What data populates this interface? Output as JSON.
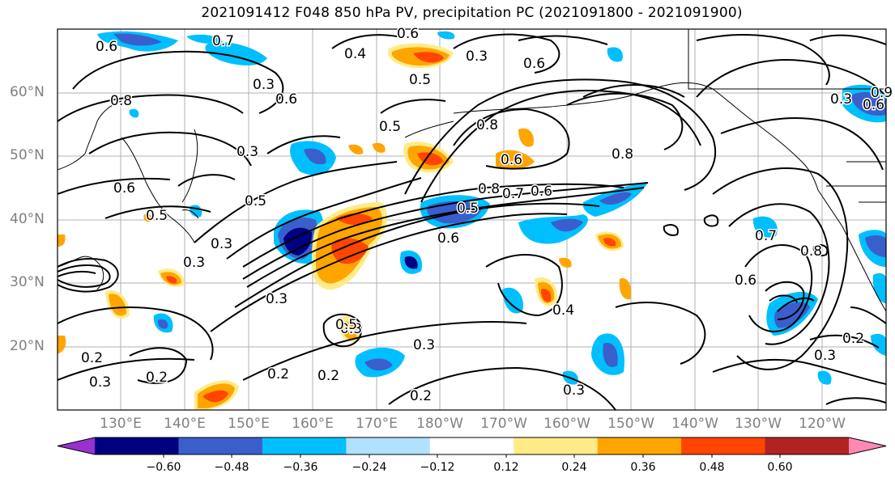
{
  "title": "2021091412 F048 850 hPa PV, precipitation PC (2021091800 - 2021091900)",
  "map": {
    "lat_labels": [
      "60°N",
      "50°N",
      "40°N",
      "30°N",
      "20°N"
    ],
    "lon_labels": [
      "130°E",
      "140°E",
      "150°E",
      "160°E",
      "170°E",
      "180°W",
      "170°W",
      "160°W",
      "150°W",
      "140°W",
      "130°W",
      "120°W"
    ],
    "contour_labels": [
      "0.6",
      "0.7",
      "0.4",
      "0.6",
      "0.3",
      "0.6",
      "0.5",
      "0.3",
      "0.5",
      "0.6",
      "0.8",
      "0.6",
      "0.5",
      "0.3",
      "0.3",
      "0.5",
      "0.8",
      "0.6",
      "0.8",
      "0.7",
      "0.6",
      "0.6",
      "0.5",
      "0.3",
      "0.3",
      "0.3",
      "0.5",
      "0.3",
      "0.7",
      "0.8",
      "0.6",
      "0.4",
      "0.3",
      "0.2",
      "0.2",
      "0.2",
      "0.2",
      "0.3",
      "0.2",
      "0.3",
      "0.2",
      "0.3",
      "0.6",
      "0.8",
      "0.9"
    ]
  },
  "colorbar": {
    "ticks": [
      "−0.60",
      "−0.48",
      "−0.36",
      "−0.24",
      "−0.12",
      "0.12",
      "0.24",
      "0.36",
      "0.48",
      "0.60"
    ],
    "colors": [
      "#9932cc",
      "#000080",
      "#3a5fcd",
      "#00bfff",
      "#b0e2ff",
      "#ffffff",
      "#ffeb87",
      "#ffa500",
      "#ff4500",
      "#b22222",
      "#ff89b4"
    ]
  }
}
